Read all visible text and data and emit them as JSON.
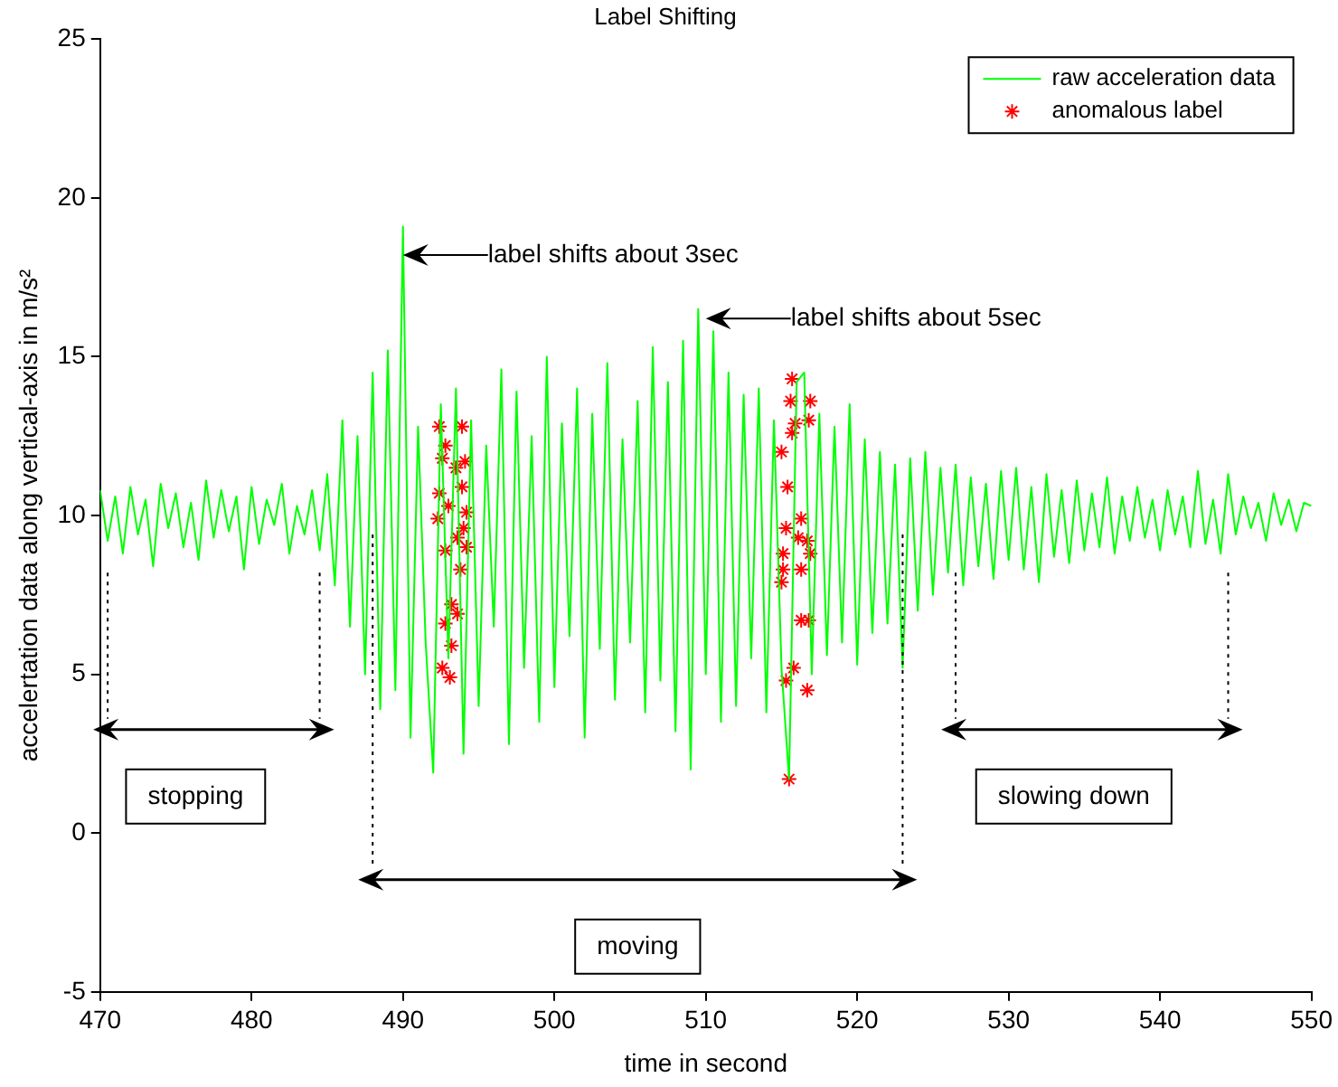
{
  "chart_data": {
    "type": "line",
    "title": "Label Shifting",
    "xlabel": "time in second",
    "ylabel": "accelertation data along vertical-axis in m/s²",
    "xlim": [
      470,
      550
    ],
    "xticks": [
      470,
      480,
      490,
      500,
      510,
      520,
      530,
      540,
      550
    ],
    "ylim": [
      -5,
      25
    ],
    "yticks": [
      -5,
      0,
      5,
      10,
      15,
      20,
      25
    ],
    "legend": "top right",
    "marker": "none",
    "series": [
      {
        "name": "raw acceleration data",
        "color": "#00ff00",
        "x": [
          470,
          470.5,
          471,
          471.5,
          472,
          472.5,
          473,
          473.5,
          474,
          474.5,
          475,
          475.5,
          476,
          476.5,
          477,
          477.5,
          478,
          478.5,
          479,
          479.5,
          480,
          480.5,
          481,
          481.5,
          482,
          482.5,
          483,
          483.5,
          484,
          484.5,
          485,
          485.5,
          486,
          486.5,
          487,
          487.5,
          488,
          488.5,
          489,
          489.5,
          490,
          490.5,
          491,
          491.5,
          492,
          492.5,
          493,
          493.5,
          494,
          494.5,
          495,
          495.5,
          496,
          496.5,
          497,
          497.5,
          498,
          498.5,
          499,
          499.5,
          500,
          500.5,
          501,
          501.5,
          502,
          502.5,
          503,
          503.5,
          504,
          504.5,
          505,
          505.5,
          506,
          506.5,
          507,
          507.5,
          508,
          508.5,
          509,
          509.5,
          510,
          510.5,
          511,
          511.5,
          512,
          512.5,
          513,
          513.5,
          514,
          514.5,
          515,
          515.5,
          516,
          516.5,
          517,
          517.5,
          518,
          518.5,
          519,
          519.5,
          520,
          520.5,
          521,
          521.5,
          522,
          522.5,
          523,
          523.5,
          524,
          524.5,
          525,
          525.5,
          526,
          526.5,
          527,
          527.5,
          528,
          528.5,
          529,
          529.5,
          530,
          530.5,
          531,
          531.5,
          532,
          532.5,
          533,
          533.5,
          534,
          534.5,
          535,
          535.5,
          536,
          536.5,
          537,
          537.5,
          538,
          538.5,
          539,
          539.5,
          540,
          540.5,
          541,
          541.5,
          542,
          542.5,
          543,
          543.5,
          544,
          544.5,
          545,
          545.5,
          546,
          546.5,
          547,
          547.5,
          548,
          548.5,
          549,
          549.5,
          550
        ],
        "values": [
          10.8,
          9.2,
          10.6,
          8.8,
          10.9,
          9.4,
          10.5,
          8.4,
          11.0,
          9.6,
          10.7,
          9.0,
          10.4,
          8.6,
          11.1,
          9.3,
          10.8,
          9.5,
          10.6,
          8.3,
          10.9,
          9.1,
          10.5,
          9.7,
          11.0,
          8.8,
          10.3,
          9.4,
          10.8,
          8.9,
          11.3,
          7.8,
          13.0,
          6.5,
          12.5,
          5.0,
          14.5,
          3.9,
          15.2,
          4.5,
          19.1,
          3.0,
          12.8,
          6.0,
          1.9,
          13.5,
          5.5,
          14.0,
          2.5,
          13.0,
          4.0,
          12.2,
          6.5,
          14.6,
          2.8,
          13.9,
          5.2,
          12.5,
          3.5,
          15.0,
          4.6,
          12.9,
          6.2,
          14.0,
          3.0,
          13.2,
          5.8,
          14.8,
          4.2,
          12.4,
          6.0,
          13.6,
          3.8,
          15.3,
          4.8,
          14.2,
          3.2,
          15.5,
          2.0,
          16.5,
          5.0,
          15.8,
          3.5,
          14.5,
          4.0,
          13.8,
          5.5,
          14.0,
          3.8,
          13.0,
          5.2,
          1.7,
          14.2,
          14.5,
          5.0,
          13.2,
          5.6,
          12.8,
          6.0,
          13.5,
          5.3,
          12.4,
          6.3,
          12.0,
          6.6,
          11.6,
          5.2,
          11.8,
          7.0,
          12.0,
          7.5,
          11.5,
          8.2,
          11.6,
          7.8,
          11.2,
          8.4,
          11.0,
          8.0,
          11.4,
          8.6,
          11.5,
          8.3,
          10.9,
          7.9,
          11.3,
          8.7,
          10.8,
          8.5,
          11.1,
          8.9,
          10.7,
          9.0,
          11.2,
          8.8,
          10.6,
          9.2,
          10.9,
          9.3,
          10.5,
          8.9,
          10.8,
          9.4,
          10.6,
          9.0,
          11.4,
          9.1,
          10.5,
          8.8,
          11.3,
          9.4,
          10.6,
          9.6,
          10.4,
          9.2,
          10.7,
          9.7,
          10.5,
          9.5,
          10.4,
          10.3
        ]
      },
      {
        "name": "anomalous label",
        "type": "scatter",
        "marker": "cross",
        "color": "#ff0000",
        "x": [
          492.4,
          493.9,
          492.8,
          492.6,
          494.1,
          493.5,
          493.9,
          492.4,
          493.0,
          494.2,
          492.3,
          494.0,
          493.6,
          492.8,
          494.2,
          493.8,
          493.2,
          493.6,
          492.8,
          493.2,
          492.6,
          493.1,
          515.7,
          515.6,
          516.9,
          515.9,
          516.8,
          515.7,
          515.0,
          515.4,
          515.3,
          516.3,
          516.1,
          516.7,
          515.1,
          516.9,
          515.1,
          516.3,
          515.0,
          516.3,
          516.8,
          515.8,
          515.3,
          516.7,
          515.5
        ],
        "values": [
          12.8,
          12.8,
          12.2,
          11.8,
          11.7,
          11.5,
          10.9,
          10.7,
          10.3,
          10.1,
          9.9,
          9.6,
          9.3,
          8.9,
          9.0,
          8.3,
          7.2,
          6.9,
          6.6,
          5.9,
          5.2,
          4.9,
          14.3,
          13.6,
          13.6,
          12.9,
          13.0,
          12.6,
          12.0,
          10.9,
          9.6,
          9.9,
          9.3,
          9.2,
          8.8,
          8.8,
          8.3,
          8.3,
          7.9,
          6.7,
          6.7,
          5.2,
          4.8,
          4.5,
          1.7
        ]
      }
    ],
    "annotations": [
      {
        "text": "label shifts about 3sec",
        "x": 490,
        "y": 18.2
      },
      {
        "text": "label shifts about 5sec",
        "x": 510,
        "y": 16.2
      },
      "stopping",
      "moving",
      "slowing down"
    ],
    "ref_lines": [
      {
        "axis": "x",
        "value": 470.5,
        "line_style": "dotted"
      },
      {
        "axis": "x",
        "value": 484.5,
        "line_style": "dotted"
      },
      {
        "axis": "x",
        "value": 488,
        "line_style": "dotted"
      },
      {
        "axis": "x",
        "value": 523,
        "line_style": "dotted"
      },
      {
        "axis": "x",
        "value": 526.5,
        "line_style": "dotted"
      },
      {
        "axis": "x",
        "value": 544.5,
        "line_style": "dotted"
      }
    ]
  }
}
